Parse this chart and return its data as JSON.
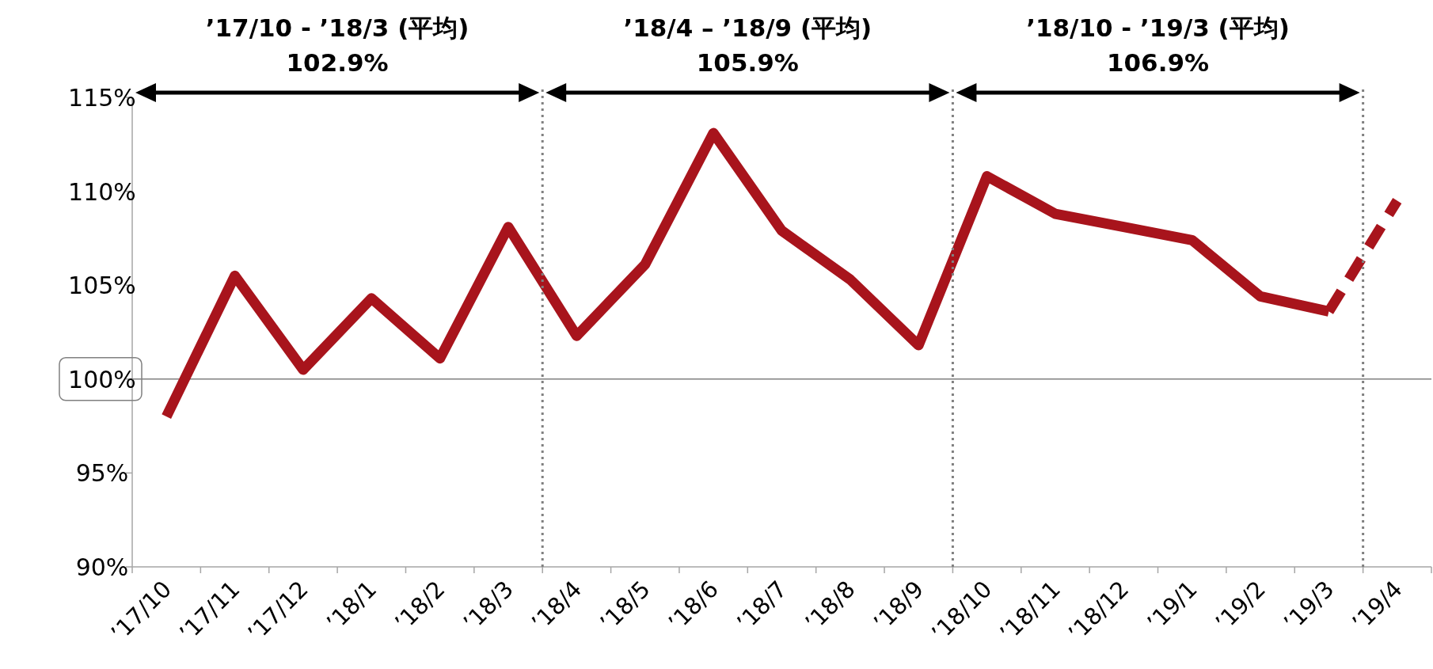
{
  "chart_data": {
    "type": "line",
    "categories": [
      "’17/10",
      "’17/11",
      "’17/12",
      "’18/1",
      "’18/2",
      "’18/3",
      "’18/4",
      "’18/5",
      "’18/6",
      "’18/7",
      "’18/8",
      "’18/9",
      "’18/10",
      "’18/11",
      "’18/12",
      "’19/1",
      "’19/2",
      "’19/3",
      "’19/4"
    ],
    "series": [
      {
        "color": "#a8141c",
        "line_style": "solid",
        "values": [
          98.0,
          105.5,
          100.5,
          104.3,
          101.1,
          108.1,
          102.3,
          106.1,
          113.1,
          107.9,
          105.3,
          101.8,
          110.8,
          108.8,
          108.1,
          107.4,
          104.4,
          103.6,
          null
        ]
      },
      {
        "color": "#a8141c",
        "line_style": "dashed",
        "values": [
          null,
          null,
          null,
          null,
          null,
          null,
          null,
          null,
          null,
          null,
          null,
          null,
          null,
          null,
          null,
          null,
          null,
          103.6,
          109.5
        ]
      }
    ],
    "ylim": [
      90,
      115
    ],
    "yticks": [
      {
        "value": 90,
        "label": "90%"
      },
      {
        "value": 95,
        "label": "95%"
      },
      {
        "value": 100,
        "label": "100%"
      },
      {
        "value": 105,
        "label": "105%"
      },
      {
        "value": 110,
        "label": "110%"
      },
      {
        "value": 115,
        "label": "115%"
      }
    ],
    "ref_lines": [
      {
        "axis": "y",
        "value": 100,
        "color": "#808080",
        "line_style": "solid"
      }
    ],
    "annotations": [
      "’17/10 - ’18/3 (平均)",
      "102.9%",
      "’18/4 – ’18/9 (平均)",
      "105.9%",
      "’18/10 - ’19/3 (平均)",
      "106.9%"
    ],
    "marker": "none"
  }
}
